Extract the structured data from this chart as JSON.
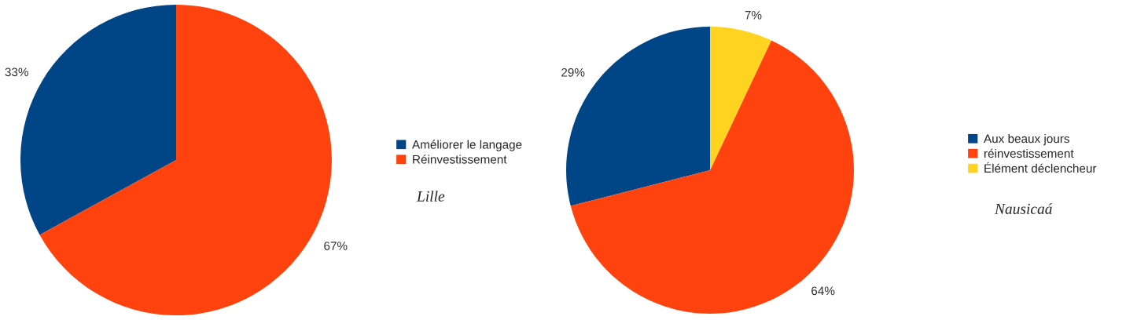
{
  "chart_data": [
    {
      "type": "pie",
      "categories": [
        "Améliorer le langage",
        "Réinvestissement"
      ],
      "values": [
        33,
        67
      ],
      "colors": [
        "#004586",
        "#ff420e"
      ],
      "value_labels": [
        "33%",
        "67%"
      ],
      "legend": "right",
      "annotations": [
        "Lille"
      ]
    },
    {
      "type": "pie",
      "categories": [
        "Aux beaux jours",
        "réinvestissement",
        "Élément déclencheur"
      ],
      "values": [
        29,
        64,
        7
      ],
      "colors": [
        "#004586",
        "#ff420e",
        "#ffd320"
      ],
      "value_labels": [
        "29%",
        "64%",
        "7%"
      ],
      "legend": "right",
      "annotations": [
        "Nausicaá"
      ]
    }
  ]
}
